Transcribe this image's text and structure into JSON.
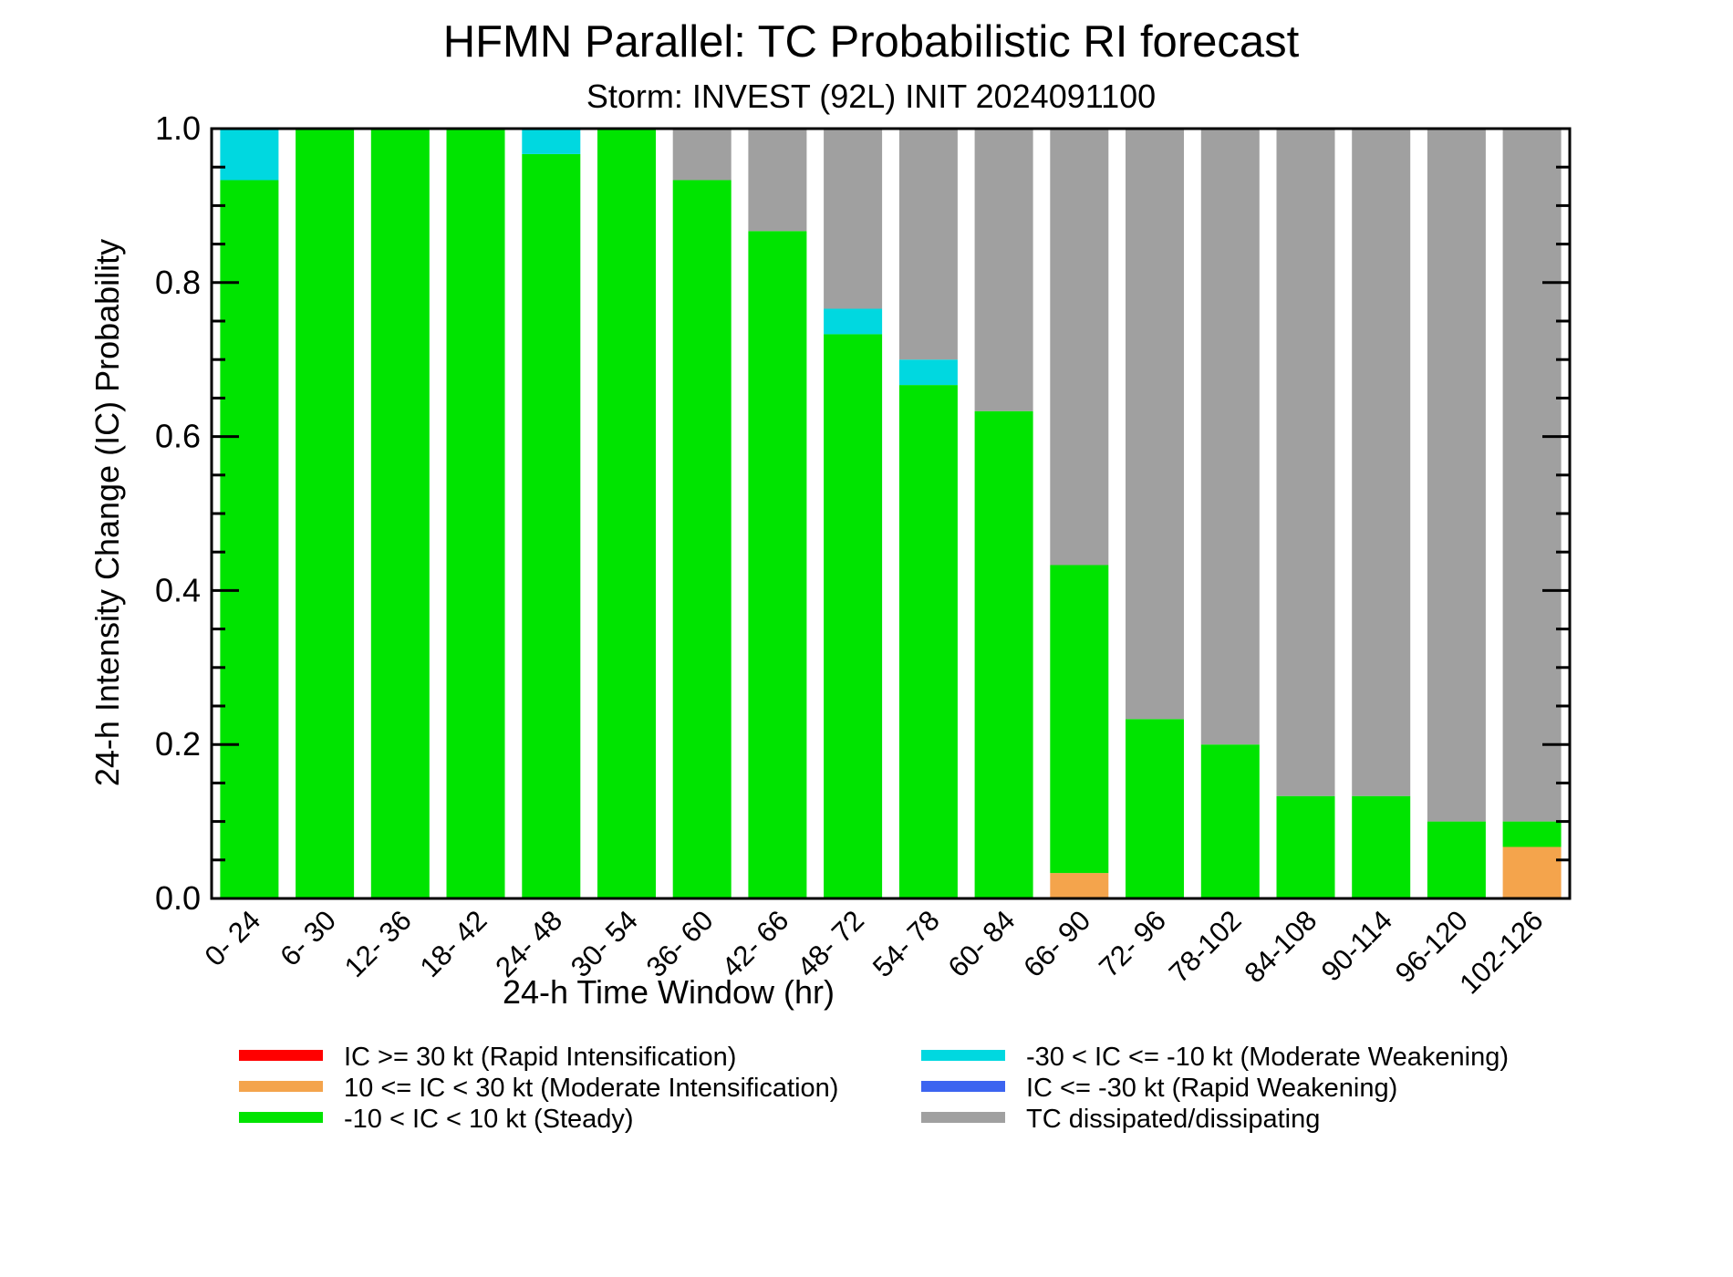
{
  "chart_data": {
    "type": "bar",
    "stacked": true,
    "title": "HFMN Parallel: TC Probabilistic RI forecast",
    "subtitle": "Storm: INVEST (92L) INIT 2024091100",
    "xlabel": "24-h Time Window (hr)",
    "ylabel": "24-h Intensity Change (IC) Probability",
    "ylim": [
      0,
      1
    ],
    "yticks": [
      "0.0",
      "0.2",
      "0.4",
      "0.6",
      "0.8",
      "1.0"
    ],
    "categories": [
      "0- 24",
      "6- 30",
      "12- 36",
      "18- 42",
      "24- 48",
      "30- 54",
      "36- 60",
      "42- 66",
      "48- 72",
      "54- 78",
      "60- 84",
      "66- 90",
      "72- 96",
      "78-102",
      "84-108",
      "90-114",
      "96-120",
      "102-126"
    ],
    "series": [
      {
        "name": "IC >= 30 kt (Rapid Intensification)",
        "color": "#ff0000",
        "values": [
          0,
          0,
          0,
          0,
          0,
          0,
          0,
          0,
          0,
          0,
          0,
          0,
          0,
          0,
          0,
          0,
          0,
          0
        ]
      },
      {
        "name": "10 <= IC < 30 kt (Moderate Intensification)",
        "color": "#f4a44c",
        "values": [
          0,
          0,
          0,
          0,
          0,
          0,
          0,
          0,
          0,
          0,
          0,
          0.033,
          0,
          0,
          0,
          0,
          0,
          0.067
        ]
      },
      {
        "name": "-10 < IC < 10 kt (Steady)",
        "color": "#00e400",
        "values": [
          0.933,
          1.0,
          1.0,
          1.0,
          0.967,
          1.0,
          0.933,
          0.867,
          0.733,
          0.667,
          0.633,
          0.4,
          0.233,
          0.2,
          0.133,
          0.133,
          0.1,
          0.033
        ]
      },
      {
        "name": "-30 < IC <= -10 kt (Moderate Weakening)",
        "color": "#00d8e0",
        "values": [
          0.067,
          0,
          0,
          0,
          0.033,
          0,
          0,
          0,
          0.033,
          0.033,
          0,
          0,
          0,
          0,
          0,
          0,
          0,
          0
        ]
      },
      {
        "name": "IC <= -30 kt (Rapid Weakening)",
        "color": "#3c64f0",
        "values": [
          0,
          0,
          0,
          0,
          0,
          0,
          0,
          0,
          0,
          0,
          0,
          0,
          0,
          0,
          0,
          0,
          0,
          0
        ]
      },
      {
        "name": "TC dissipated/dissipating",
        "color": "#a0a0a0",
        "values": [
          0,
          0,
          0,
          0,
          0,
          0,
          0.067,
          0.133,
          0.233,
          0.3,
          0.367,
          0.567,
          0.767,
          0.8,
          0.867,
          0.867,
          0.9,
          0.9
        ]
      }
    ],
    "legend_order": [
      0,
      3,
      1,
      4,
      2,
      5
    ],
    "legend_position": "bottom"
  }
}
